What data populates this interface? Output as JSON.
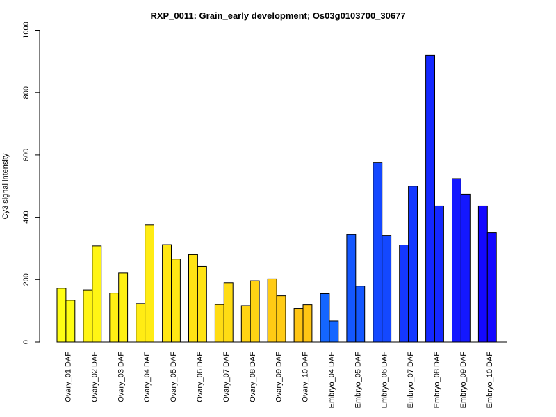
{
  "chart_data": {
    "type": "bar",
    "title": "RXP_0011: Grain_early development; Os03g0103700_30677",
    "xlabel": "",
    "ylabel": "Cy3 signal intensity",
    "ylim": [
      0,
      1000
    ],
    "yticks": [
      0,
      200,
      400,
      600,
      800,
      1000
    ],
    "grid": false,
    "legend": "none",
    "categories": [
      "Ovary_01 DAF",
      "Ovary_02 DAF",
      "Ovary_03 DAF",
      "Ovary_04 DAF",
      "Ovary_05 DAF",
      "Ovary_06 DAF",
      "Ovary_07 DAF",
      "Ovary_08 DAF",
      "Ovary_09 DAF",
      "Ovary_10 DAF",
      "Embryo_04 DAF",
      "Embryo_05 DAF",
      "Embryo_06 DAF",
      "Embryo_07 DAF",
      "Embryo_08 DAF",
      "Embryo_09 DAF",
      "Embryo_10 DAF"
    ],
    "colors": [
      "#FFFF14",
      "#FFF514",
      "#FFF014",
      "#FFEC14",
      "#FFE714",
      "#FFE314",
      "#FFDC14",
      "#FFD414",
      "#FFCB14",
      "#FFC514",
      "#1466FF",
      "#1457FF",
      "#1448FF",
      "#1438FF",
      "#1428FF",
      "#1418FF",
      "#1408FF"
    ],
    "series": [
      {
        "values": [
          172,
          167,
          157,
          123,
          312,
          280,
          120,
          116,
          202,
          108,
          155,
          345,
          576,
          311,
          920,
          524,
          436
        ]
      },
      {
        "values": [
          134,
          308,
          221,
          375,
          266,
          242,
          190,
          196,
          148,
          119,
          67,
          179,
          342,
          500,
          436,
          474,
          351
        ]
      }
    ]
  }
}
